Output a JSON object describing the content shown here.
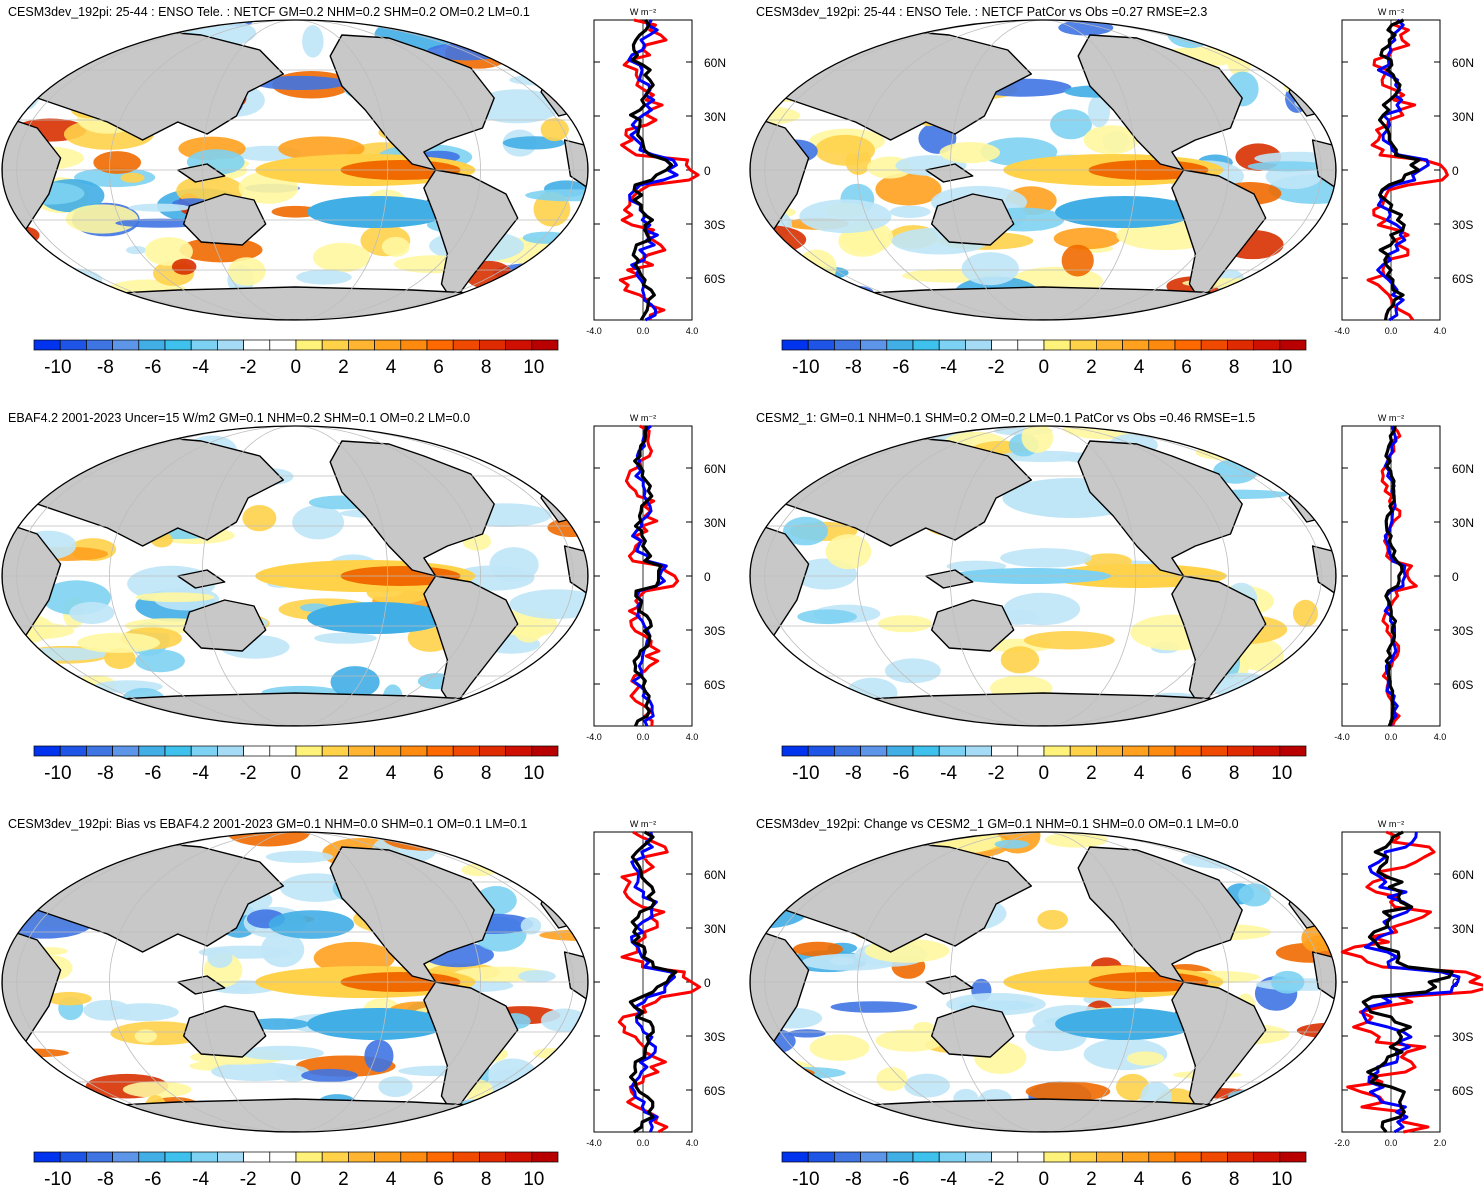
{
  "colorbar": {
    "labels": [
      "-10",
      "-8",
      "-6",
      "-4",
      "-2",
      "0",
      "2",
      "4",
      "6",
      "8",
      "10"
    ],
    "colors": [
      "#0033ee",
      "#1f55e6",
      "#3f74e3",
      "#5d95e8",
      "#41aee6",
      "#3fc1ee",
      "#7dd1f2",
      "#a6dbf5",
      "#ffffff",
      "#ffffff",
      "#fff27a",
      "#ffd24a",
      "#ffb532",
      "#ffa11e",
      "#ff8a10",
      "#ff6a00",
      "#f04a00",
      "#e02a00",
      "#cf1000",
      "#b80000"
    ]
  },
  "palette": {
    "ocean_pos": [
      "#fff7a0",
      "#ffd24a",
      "#ffa11e",
      "#f06a00",
      "#d83000"
    ],
    "ocean_neg": [
      "#bfe6f7",
      "#7dd1f2",
      "#41aee6",
      "#3f74e3"
    ],
    "land": "#c8c8c8",
    "grid": "#bdbdbd",
    "line_red": "#ff0000",
    "line_blue": "#0000ff",
    "line_black": "#000000"
  },
  "zonal_axis": {
    "unit": "W m⁻²",
    "lat_labels": [
      "60N",
      "30N",
      "0",
      "30S",
      "60S"
    ]
  },
  "panels": [
    {
      "title": "CESM3dev_192pi: 25-44 : ENSO Tele. : NETCF GM=0.2 NHM=0.2 SHM=0.2 OM=0.2 LM=0.1",
      "xticks": [
        "-4.0",
        "0.0",
        "4.0"
      ],
      "xmax": 4.0,
      "seed": 11,
      "amp": 1.0
    },
    {
      "title": "CESM3dev_192pi: 25-44 : ENSO Tele. : NETCF PatCor vs Obs =0.27 RMSE=2.3",
      "xticks": [
        "-4.0",
        "0.0",
        "4.0"
      ],
      "xmax": 4.0,
      "seed": 12,
      "amp": 1.0
    },
    {
      "title": "EBAF4.2 2001-2023 Uncer=15 W/m2 GM=0.1 NHM=0.2 SHM=0.1 OM=0.2 LM=0.0",
      "xticks": [
        "-4.0",
        "0.0",
        "4.0"
      ],
      "xmax": 4.0,
      "seed": 23,
      "amp": 0.7
    },
    {
      "title": "CESM2_1: GM=0.1 NHM=0.1 SHM=0.2 OM=0.2 LM=0.1 PatCor vs Obs =0.46 RMSE=1.5",
      "xticks": [
        "-4.0",
        "0.0",
        "4.0"
      ],
      "xmax": 4.0,
      "seed": 34,
      "amp": 0.45
    },
    {
      "title": "CESM3dev_192pi: Bias vs EBAF4.2 2001-2023 GM=0.1 NHM=0.0 SHM=0.1 OM=0.1 LM=0.1",
      "xticks": [
        "-4.0",
        "0.0",
        "4.0"
      ],
      "xmax": 4.0,
      "seed": 45,
      "amp": 1.0
    },
    {
      "title": "CESM3dev_192pi: Change vs CESM2_1 GM=0.1 NHM=0.1 SHM=0.0 OM=0.1 LM=0.0",
      "xticks": [
        "-2.0",
        "0.0",
        "2.0"
      ],
      "xmax": 2.0,
      "seed": 56,
      "amp": 1.0
    }
  ]
}
